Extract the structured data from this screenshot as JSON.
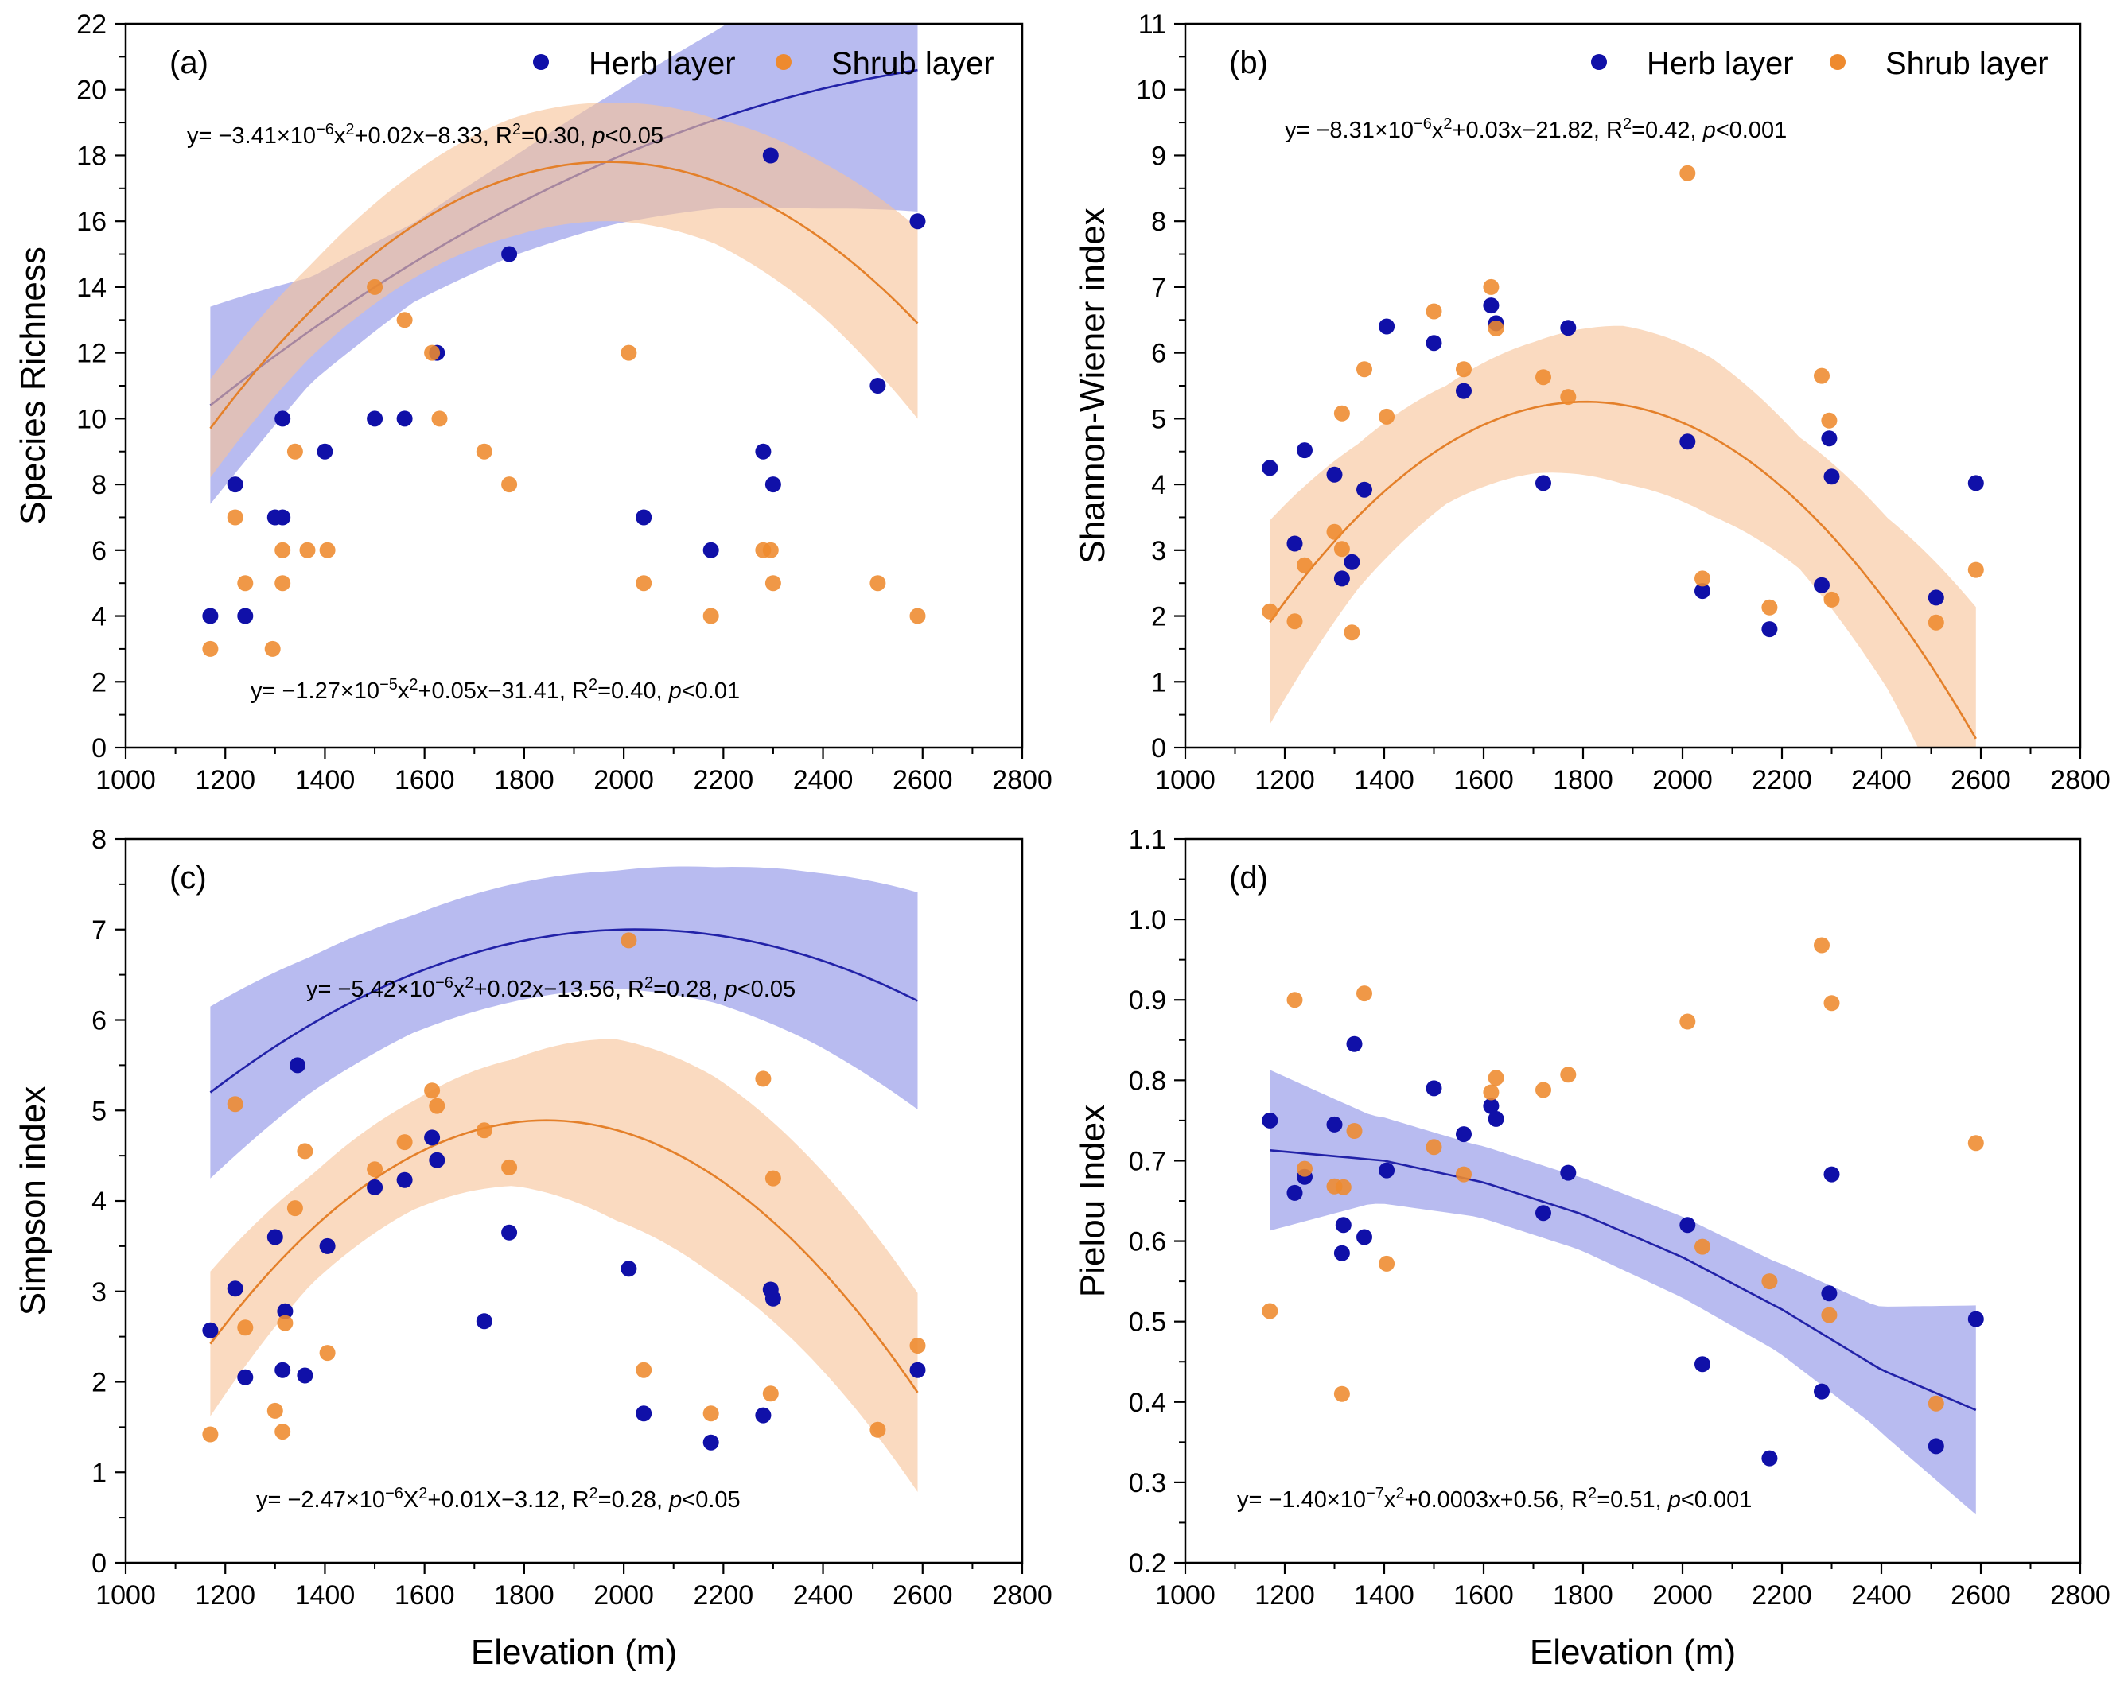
{
  "colors": {
    "herb": "#1010a8",
    "shrub": "#ee8a2e",
    "herb_band": "#8c91e6",
    "shrub_band": "#f7c49a",
    "herb_line": "#2222a8",
    "shrub_line": "#e4802a"
  },
  "legend": {
    "herb": "Herb layer",
    "shrub": "Shrub layer"
  },
  "chart_data": [
    {
      "type": "scatter",
      "panel": "(a)",
      "ylabel": "Species Richness",
      "xlabel": "",
      "xlim": [
        1000,
        2800
      ],
      "ylim": [
        0,
        22
      ],
      "xticks": [
        "1000",
        "1200",
        "1400",
        "1600",
        "1800",
        "2000",
        "2200",
        "2400",
        "2600",
        "2800"
      ],
      "yticks": [
        "0",
        "2",
        "4",
        "6",
        "8",
        "10",
        "12",
        "14",
        "16",
        "18",
        "20",
        "22"
      ],
      "show_legend": true,
      "series": [
        {
          "name": "Herb layer",
          "points": [
            [
              1170,
              4
            ],
            [
              1220,
              8
            ],
            [
              1240,
              4
            ],
            [
              1300,
              7
            ],
            [
              1315,
              10
            ],
            [
              1315,
              7
            ],
            [
              1400,
              9
            ],
            [
              1500,
              10
            ],
            [
              1560,
              10
            ],
            [
              1625,
              12
            ],
            [
              1770,
              15
            ],
            [
              2040,
              7
            ],
            [
              2175,
              6
            ],
            [
              2280,
              9
            ],
            [
              2300,
              8
            ],
            [
              2295,
              18
            ],
            [
              2510,
              11
            ],
            [
              2590,
              16
            ]
          ]
        },
        {
          "name": "Shrub layer",
          "points": [
            [
              1170,
              3
            ],
            [
              1220,
              7
            ],
            [
              1240,
              5
            ],
            [
              1295,
              3
            ],
            [
              1315,
              6
            ],
            [
              1315,
              5
            ],
            [
              1340,
              9
            ],
            [
              1365,
              6
            ],
            [
              1405,
              6
            ],
            [
              1500,
              14
            ],
            [
              1560,
              13
            ],
            [
              1615,
              12
            ],
            [
              1630,
              10
            ],
            [
              1720,
              9
            ],
            [
              1770,
              8
            ],
            [
              2010,
              12
            ],
            [
              2040,
              5
            ],
            [
              2175,
              4
            ],
            [
              2280,
              6
            ],
            [
              2295,
              6
            ],
            [
              2300,
              5
            ],
            [
              2510,
              5
            ],
            [
              2590,
              4
            ]
          ]
        }
      ],
      "fits": [
        {
          "series": "Herb layer",
          "coef": [
            -3.41e-06,
            0.02,
            -8.33
          ],
          "r2": 0.3,
          "p": "<0.05",
          "x_range": [
            1170,
            2590
          ],
          "band_halfwidth": [
            3.0,
            1.6,
            1.2,
            1.5,
            2.0,
            2.7,
            3.6,
            4.3
          ],
          "equation": "y= −3.41×10⁻⁶x²+0.02x−8.33, R²=0.30, p<0.05"
        },
        {
          "series": "Shrub layer",
          "coef": [
            -1.27e-05,
            0.05,
            -31.41
          ],
          "r2": 0.4,
          "p": "<0.01",
          "x_range": [
            1170,
            2590
          ],
          "band_halfwidth": [
            1.5,
            1.4,
            1.6,
            1.8,
            1.8,
            1.9,
            2.3,
            2.9
          ],
          "equation": "y= −1.27×10⁻⁵x²+0.05x−31.41, R²=0.40, p<0.01"
        }
      ]
    },
    {
      "type": "scatter",
      "panel": "(b)",
      "ylabel": "Shannon-Wiener index",
      "xlabel": "",
      "xlim": [
        1000,
        2800
      ],
      "ylim": [
        0,
        11
      ],
      "xticks": [
        "1000",
        "1200",
        "1400",
        "1600",
        "1800",
        "2000",
        "2200",
        "2400",
        "2600",
        "2800"
      ],
      "yticks": [
        "0",
        "1",
        "2",
        "3",
        "4",
        "5",
        "6",
        "7",
        "8",
        "9",
        "10",
        "11"
      ],
      "show_legend": true,
      "series": [
        {
          "name": "Herb layer",
          "points": [
            [
              1170,
              4.25
            ],
            [
              1220,
              3.1
            ],
            [
              1240,
              4.52
            ],
            [
              1300,
              4.15
            ],
            [
              1315,
              2.57
            ],
            [
              1335,
              2.82
            ],
            [
              1360,
              3.92
            ],
            [
              1405,
              6.4
            ],
            [
              1500,
              6.15
            ],
            [
              1560,
              5.42
            ],
            [
              1615,
              6.72
            ],
            [
              1625,
              6.45
            ],
            [
              1720,
              4.02
            ],
            [
              1770,
              6.38
            ],
            [
              2010,
              4.65
            ],
            [
              2040,
              2.38
            ],
            [
              2175,
              1.8
            ],
            [
              2280,
              2.47
            ],
            [
              2295,
              4.7
            ],
            [
              2300,
              4.12
            ],
            [
              2510,
              2.28
            ],
            [
              2590,
              4.02
            ]
          ]
        },
        {
          "name": "Shrub layer",
          "points": [
            [
              1170,
              2.07
            ],
            [
              1220,
              1.92
            ],
            [
              1240,
              2.77
            ],
            [
              1300,
              3.28
            ],
            [
              1315,
              5.08
            ],
            [
              1315,
              3.02
            ],
            [
              1335,
              1.75
            ],
            [
              1360,
              5.75
            ],
            [
              1405,
              5.03
            ],
            [
              1500,
              6.63
            ],
            [
              1560,
              5.75
            ],
            [
              1615,
              7.0
            ],
            [
              1625,
              6.37
            ],
            [
              1720,
              5.63
            ],
            [
              1770,
              5.33
            ],
            [
              2010,
              8.73
            ],
            [
              2040,
              2.57
            ],
            [
              2175,
              2.13
            ],
            [
              2280,
              5.65
            ],
            [
              2295,
              4.97
            ],
            [
              2300,
              2.25
            ],
            [
              2510,
              1.9
            ],
            [
              2590,
              2.7
            ]
          ]
        }
      ],
      "fits": [
        {
          "series": "Shrub layer",
          "coef": [
            -8.31e-06,
            0.03,
            -21.82
          ],
          "r2": 0.42,
          "p": "<0.001",
          "x_range": [
            1170,
            2590
          ],
          "band_halfwidth": [
            1.55,
            1.1,
            0.9,
            1.0,
            1.2,
            1.2,
            1.0,
            1.3,
            2.0
          ],
          "equation": "y= −8.31×10⁻⁶x²+0.03x−21.82, R²=0.42, p<0.001"
        }
      ]
    },
    {
      "type": "scatter",
      "panel": "(c)",
      "ylabel": "Simpson index",
      "xlabel": "Elevation (m)",
      "xlim": [
        1000,
        2800
      ],
      "ylim": [
        0,
        8
      ],
      "xticks": [
        "1000",
        "1200",
        "1400",
        "1600",
        "1800",
        "2000",
        "2200",
        "2400",
        "2600",
        "2800"
      ],
      "yticks": [
        "0",
        "1",
        "2",
        "3",
        "4",
        "5",
        "6",
        "7",
        "8"
      ],
      "show_legend": false,
      "series": [
        {
          "name": "Herb layer",
          "points": [
            [
              1170,
              2.57
            ],
            [
              1220,
              3.03
            ],
            [
              1240,
              2.05
            ],
            [
              1300,
              3.6
            ],
            [
              1315,
              2.13
            ],
            [
              1320,
              2.78
            ],
            [
              1345,
              5.5
            ],
            [
              1360,
              2.07
            ],
            [
              1405,
              3.5
            ],
            [
              1500,
              4.15
            ],
            [
              1560,
              4.23
            ],
            [
              1615,
              4.7
            ],
            [
              1625,
              4.45
            ],
            [
              1720,
              2.67
            ],
            [
              1770,
              3.65
            ],
            [
              2010,
              3.25
            ],
            [
              2040,
              1.65
            ],
            [
              2175,
              1.33
            ],
            [
              2280,
              1.63
            ],
            [
              2295,
              3.02
            ],
            [
              2300,
              2.92
            ],
            [
              2590,
              2.13
            ]
          ]
        },
        {
          "name": "Shrub layer",
          "points": [
            [
              1170,
              1.42
            ],
            [
              1220,
              5.07
            ],
            [
              1240,
              2.6
            ],
            [
              1300,
              1.68
            ],
            [
              1315,
              1.45
            ],
            [
              1320,
              2.65
            ],
            [
              1340,
              3.92
            ],
            [
              1360,
              4.55
            ],
            [
              1405,
              2.32
            ],
            [
              1500,
              4.35
            ],
            [
              1560,
              4.65
            ],
            [
              1615,
              5.22
            ],
            [
              1625,
              5.05
            ],
            [
              1720,
              4.78
            ],
            [
              1770,
              4.37
            ],
            [
              2010,
              6.88
            ],
            [
              2040,
              2.13
            ],
            [
              2175,
              1.65
            ],
            [
              2280,
              5.35
            ],
            [
              2295,
              1.87
            ],
            [
              2300,
              4.25
            ],
            [
              2510,
              1.47
            ],
            [
              2590,
              2.4
            ]
          ]
        }
      ],
      "fits": [
        {
          "series": "Shrub layer",
          "coef": [
            -5.42e-06,
            0.02,
            -13.56
          ],
          "r2": 0.28,
          "p": "<0.05",
          "x_range": [
            1170,
            2590
          ],
          "band_halfwidth": [
            0.8,
            0.6,
            0.6,
            0.7,
            1.0,
            1.1,
            1.1,
            1.1
          ],
          "equation": "y= −5.42×10⁻⁶x²+0.02x−13.56, R²=0.28, p<0.05"
        },
        {
          "series": "Herb layer",
          "coef": [
            -2.47e-06,
            0.01,
            -3.12
          ],
          "r2": 0.28,
          "p": "<0.05",
          "x_range": [
            1170,
            2590
          ],
          "band_halfwidth": [
            0.95,
            0.75,
            0.65,
            0.65,
            0.65,
            0.75,
            0.95,
            1.2
          ],
          "equation": "y= −2.47×10⁻⁶X²+0.01X−3.12, R²=0.28, p<0.05"
        }
      ]
    },
    {
      "type": "scatter",
      "panel": "(d)",
      "ylabel": "Pielou Index",
      "xlabel": "Elevation (m)",
      "xlim": [
        1000,
        2800
      ],
      "ylim": [
        0.2,
        1.1
      ],
      "xticks": [
        "1000",
        "1200",
        "1400",
        "1600",
        "1800",
        "2000",
        "2200",
        "2400",
        "2600",
        "2800"
      ],
      "yticks": [
        "0.2",
        "0.3",
        "0.4",
        "0.5",
        "0.6",
        "0.7",
        "0.8",
        "0.9",
        "1.0",
        "1.1"
      ],
      "show_legend": false,
      "series": [
        {
          "name": "Herb layer",
          "points": [
            [
              1170,
              0.75
            ],
            [
              1220,
              0.66
            ],
            [
              1240,
              0.68
            ],
            [
              1300,
              0.745
            ],
            [
              1315,
              0.585
            ],
            [
              1318,
              0.62
            ],
            [
              1340,
              0.845
            ],
            [
              1360,
              0.605
            ],
            [
              1405,
              0.688
            ],
            [
              1500,
              0.79
            ],
            [
              1560,
              0.733
            ],
            [
              1615,
              0.768
            ],
            [
              1625,
              0.752
            ],
            [
              1720,
              0.635
            ],
            [
              1770,
              0.685
            ],
            [
              2010,
              0.62
            ],
            [
              2040,
              0.447
            ],
            [
              2175,
              0.33
            ],
            [
              2280,
              0.413
            ],
            [
              2295,
              0.535
            ],
            [
              2300,
              0.683
            ],
            [
              2510,
              0.345
            ],
            [
              2590,
              0.503
            ]
          ]
        },
        {
          "name": "Shrub layer",
          "points": [
            [
              1170,
              0.513
            ],
            [
              1220,
              0.9
            ],
            [
              1240,
              0.69
            ],
            [
              1300,
              0.668
            ],
            [
              1315,
              0.41
            ],
            [
              1318,
              0.667
            ],
            [
              1340,
              0.737
            ],
            [
              1360,
              0.908
            ],
            [
              1405,
              0.572
            ],
            [
              1500,
              0.717
            ],
            [
              1560,
              0.683
            ],
            [
              1615,
              0.785
            ],
            [
              1625,
              0.803
            ],
            [
              1720,
              0.788
            ],
            [
              1770,
              0.807
            ],
            [
              2010,
              0.873
            ],
            [
              2040,
              0.593
            ],
            [
              2175,
              0.55
            ],
            [
              2280,
              0.968
            ],
            [
              2295,
              0.508
            ],
            [
              2300,
              0.896
            ],
            [
              2510,
              0.398
            ],
            [
              2590,
              0.722
            ]
          ]
        }
      ],
      "fits": [
        {
          "series": "Herb layer",
          "coef": [
            -1.4e-07,
            0.0003,
            0.56
          ],
          "r2": 0.51,
          "p": "<0.001",
          "x_range": [
            1170,
            2590
          ],
          "line_override": [
            [
              1170,
              0.713
            ],
            [
              1400,
              0.7
            ],
            [
              1600,
              0.673
            ],
            [
              1800,
              0.633
            ],
            [
              2000,
              0.58
            ],
            [
              2200,
              0.515
            ],
            [
              2400,
              0.44
            ],
            [
              2590,
              0.39
            ]
          ],
          "band_halfwidth": [
            0.1,
            0.055,
            0.045,
            0.045,
            0.05,
            0.055,
            0.075,
            0.13
          ],
          "equation": "y= −1.40×10⁻⁷x²+0.0003x+0.56, R²=0.51, p<0.001"
        }
      ]
    }
  ]
}
